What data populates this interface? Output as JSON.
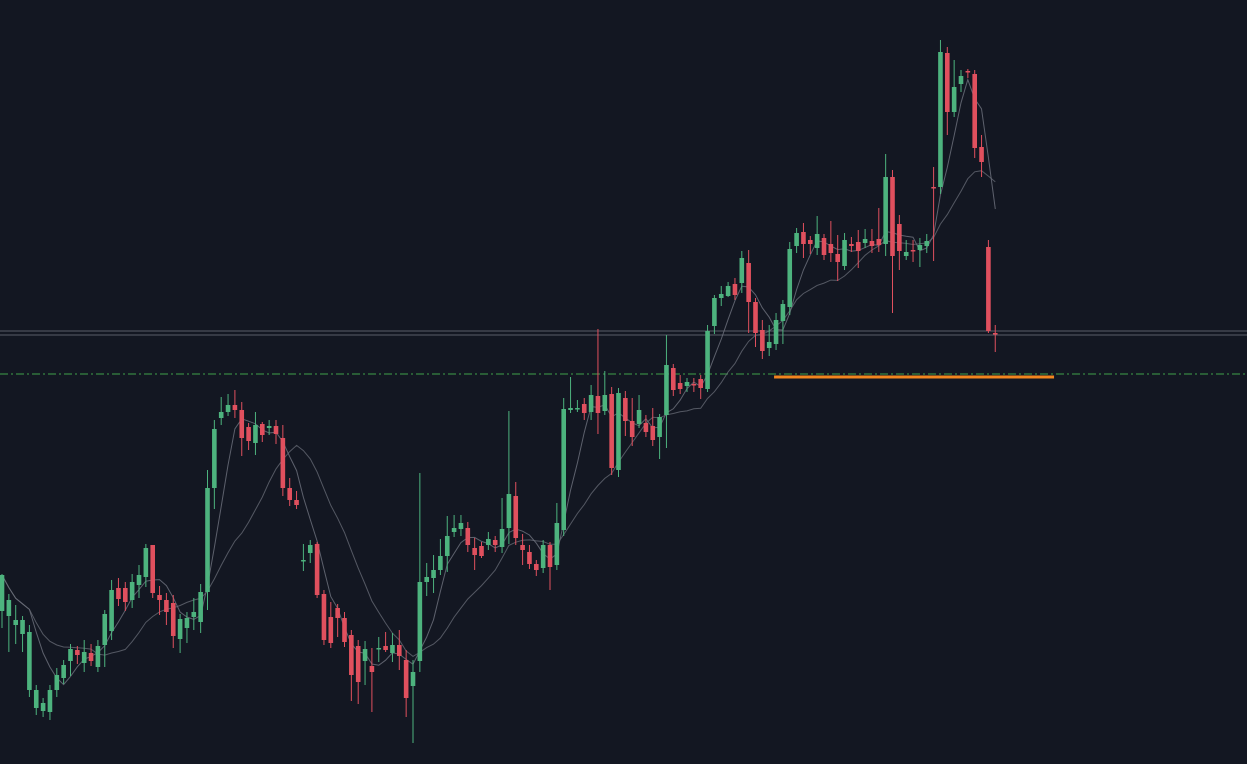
{
  "chart_data": {
    "type": "candlestick",
    "title": "",
    "xlabel": "",
    "ylabel": "",
    "ylim": [
      0,
      764
    ],
    "grid": false,
    "legend": "none",
    "colors": {
      "background": "#131722",
      "up": "#4db37e",
      "down": "#e0505e",
      "ma": "#6b6f7a",
      "level_line": "#787b86",
      "dashed_level": "#3fa04a",
      "support": "#f2851e"
    },
    "levels": [
      {
        "name": "horizontal-level",
        "y": 333,
        "style": "double"
      },
      {
        "name": "dash-dot-level",
        "y": 374,
        "style": "dash-dot"
      }
    ],
    "support_zone": {
      "y": 377,
      "x_start_index": 113,
      "x_end_index": 153
    },
    "candles": [
      [
        611,
        575,
        628,
        574
      ],
      [
        616,
        600,
        652,
        594
      ],
      [
        625,
        620,
        644,
        605
      ],
      [
        634,
        620,
        652,
        616
      ],
      [
        690,
        632,
        697,
        625
      ],
      [
        708,
        690,
        715,
        685
      ],
      [
        711,
        703,
        717,
        698
      ],
      [
        712,
        690,
        720,
        685
      ],
      [
        690,
        675,
        697,
        668
      ],
      [
        678,
        665,
        684,
        660
      ],
      [
        661,
        649,
        676,
        644
      ],
      [
        650,
        655,
        664,
        646
      ],
      [
        663,
        652,
        672,
        640
      ],
      [
        653,
        661,
        666,
        644
      ],
      [
        667,
        646,
        672,
        640
      ],
      [
        645,
        614,
        667,
        610
      ],
      [
        631,
        590,
        640,
        580
      ],
      [
        588,
        599,
        606,
        578
      ],
      [
        588,
        602,
        611,
        582
      ],
      [
        600,
        582,
        608,
        574
      ],
      [
        585,
        575,
        598,
        565
      ],
      [
        577,
        548,
        587,
        544
      ],
      [
        545,
        593,
        598,
        545
      ],
      [
        595,
        600,
        615,
        586
      ],
      [
        600,
        612,
        625,
        593
      ],
      [
        603,
        636,
        648,
        595
      ],
      [
        639,
        619,
        653,
        614
      ],
      [
        628,
        618,
        643,
        612
      ],
      [
        617,
        612,
        630,
        598
      ],
      [
        622,
        592,
        633,
        584
      ],
      [
        592,
        488,
        610,
        470
      ],
      [
        488,
        429,
        509,
        420
      ],
      [
        418,
        412,
        425,
        397
      ],
      [
        412,
        405,
        416,
        394
      ],
      [
        405,
        410,
        418,
        390
      ],
      [
        410,
        438,
        456,
        402
      ],
      [
        427,
        441,
        450,
        423
      ],
      [
        443,
        425,
        455,
        412
      ],
      [
        424,
        435,
        442,
        422
      ],
      [
        428,
        426,
        435,
        420
      ],
      [
        426,
        434,
        444,
        420
      ],
      [
        438,
        488,
        496,
        425
      ],
      [
        488,
        500,
        506,
        478
      ],
      [
        500,
        505,
        509,
        491
      ],
      [
        561,
        560,
        571,
        544
      ],
      [
        553,
        545,
        563,
        540
      ],
      [
        544,
        595,
        598,
        542
      ],
      [
        594,
        640,
        645,
        590
      ],
      [
        617,
        643,
        648,
        602
      ],
      [
        608,
        618,
        637,
        604
      ],
      [
        618,
        642,
        647,
        612
      ],
      [
        635,
        675,
        701,
        630
      ],
      [
        646,
        682,
        704,
        640
      ],
      [
        661,
        649,
        685,
        641
      ],
      [
        666,
        672,
        712,
        648
      ],
      [
        649,
        648,
        662,
        637
      ],
      [
        646,
        650,
        652,
        632
      ],
      [
        653,
        645,
        662,
        633
      ],
      [
        645,
        656,
        670,
        630
      ],
      [
        660,
        698,
        717,
        650
      ],
      [
        686,
        672,
        743,
        660
      ],
      [
        661,
        582,
        672,
        473
      ],
      [
        582,
        577,
        596,
        563
      ],
      [
        578,
        570,
        593,
        555
      ],
      [
        570,
        556,
        575,
        539
      ],
      [
        556,
        536,
        572,
        516
      ],
      [
        532,
        528,
        537,
        515
      ],
      [
        529,
        523,
        536,
        515
      ],
      [
        528,
        545,
        552,
        522
      ],
      [
        548,
        555,
        570,
        538
      ],
      [
        546,
        556,
        558,
        542
      ],
      [
        545,
        539,
        550,
        532
      ],
      [
        540,
        545,
        552,
        536
      ],
      [
        547,
        529,
        553,
        498
      ],
      [
        528,
        494,
        544,
        411
      ],
      [
        496,
        538,
        545,
        482
      ],
      [
        545,
        550,
        565,
        534
      ],
      [
        552,
        564,
        569,
        545
      ],
      [
        564,
        570,
        576,
        560
      ],
      [
        568,
        545,
        573,
        540
      ],
      [
        545,
        567,
        590,
        542
      ],
      [
        565,
        523,
        570,
        503
      ],
      [
        530,
        409,
        536,
        398
      ],
      [
        410,
        408,
        413,
        377
      ],
      [
        409,
        408,
        412,
        400
      ],
      [
        404,
        413,
        420,
        398
      ],
      [
        412,
        395,
        420,
        385
      ],
      [
        396,
        413,
        434,
        329
      ],
      [
        411,
        395,
        415,
        371
      ],
      [
        394,
        468,
        475,
        387
      ],
      [
        470,
        393,
        477,
        388
      ],
      [
        398,
        421,
        436,
        391
      ],
      [
        421,
        437,
        446,
        398
      ],
      [
        424,
        410,
        428,
        395
      ],
      [
        423,
        432,
        437,
        415
      ],
      [
        426,
        440,
        446,
        408
      ],
      [
        437,
        417,
        459,
        414
      ],
      [
        415,
        365,
        448,
        335
      ],
      [
        368,
        390,
        396,
        364
      ],
      [
        383,
        389,
        394,
        375
      ],
      [
        386,
        382,
        392,
        378
      ],
      [
        384,
        384,
        392,
        378
      ],
      [
        379,
        388,
        399,
        375
      ],
      [
        389,
        331,
        392,
        325
      ],
      [
        326,
        298,
        334,
        295
      ],
      [
        298,
        294,
        306,
        286
      ],
      [
        296,
        286,
        297,
        282
      ],
      [
        284,
        295,
        300,
        278
      ],
      [
        283,
        258,
        293,
        251
      ],
      [
        263,
        302,
        333,
        250
      ],
      [
        302,
        333,
        347,
        298
      ],
      [
        330,
        351,
        359,
        320
      ],
      [
        348,
        342,
        356,
        325
      ],
      [
        344,
        320,
        350,
        313
      ],
      [
        321,
        304,
        344,
        300
      ],
      [
        307,
        249,
        315,
        242
      ],
      [
        246,
        233,
        253,
        228
      ],
      [
        232,
        244,
        258,
        223
      ],
      [
        240,
        244,
        254,
        236
      ],
      [
        248,
        234,
        255,
        216
      ],
      [
        238,
        255,
        260,
        234
      ],
      [
        244,
        253,
        262,
        221
      ],
      [
        254,
        262,
        281,
        235
      ],
      [
        266,
        240,
        270,
        233
      ],
      [
        244,
        246,
        252,
        237
      ],
      [
        242,
        251,
        268,
        230
      ],
      [
        243,
        239,
        248,
        229
      ],
      [
        241,
        246,
        253,
        229
      ],
      [
        239,
        245,
        252,
        208
      ],
      [
        244,
        177,
        256,
        154
      ],
      [
        177,
        256,
        313,
        170
      ],
      [
        224,
        251,
        270,
        215
      ],
      [
        256,
        252,
        260,
        240
      ],
      [
        250,
        250,
        262,
        240
      ],
      [
        250,
        245,
        267,
        238
      ],
      [
        246,
        241,
        253,
        234
      ],
      [
        187,
        187,
        261,
        167
      ],
      [
        187,
        52,
        194,
        40
      ],
      [
        53,
        112,
        135,
        47
      ],
      [
        112,
        87,
        117,
        60
      ],
      [
        84,
        76,
        92,
        70
      ],
      [
        71,
        71,
        78,
        69
      ],
      [
        74,
        148,
        158,
        70
      ],
      [
        147,
        162,
        177,
        135
      ],
      [
        247,
        331,
        333,
        240
      ],
      [
        333,
        333,
        352,
        325
      ]
    ]
  }
}
